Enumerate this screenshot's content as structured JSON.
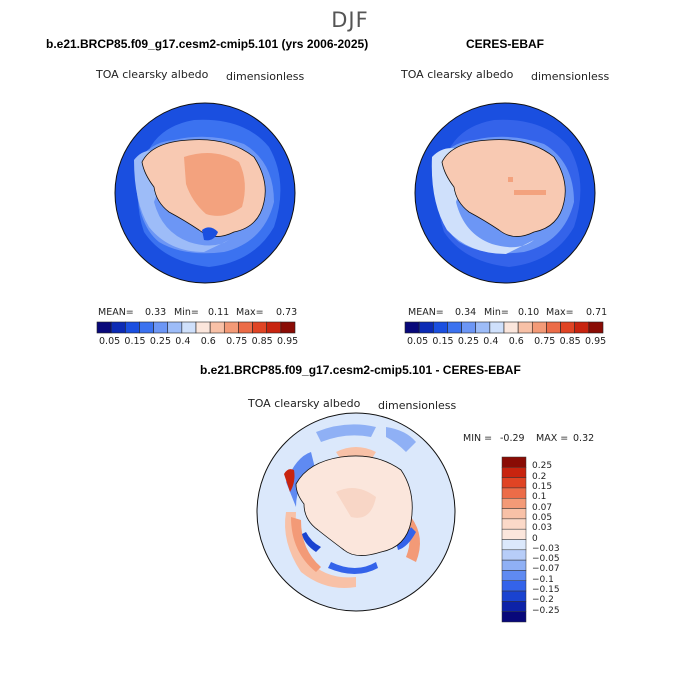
{
  "season": "DJF",
  "panels": [
    {
      "title": "b.e21.BRCP85.f09_g17.cesm2-cmip5.101 (yrs 2006-2025)",
      "variable": "TOA clearsky albedo",
      "units": "dimensionless",
      "stats": {
        "mean_label": "MEAN=",
        "mean": "0.33",
        "min_label": "Min=",
        "min": "0.11",
        "max_label": "Max=",
        "max": "0.73"
      }
    },
    {
      "title": "CERES-EBAF",
      "variable": "TOA clearsky albedo",
      "units": "dimensionless",
      "stats": {
        "mean_label": "MEAN=",
        "mean": "0.34",
        "min_label": "Min=",
        "min": "0.10",
        "max_label": "Max=",
        "max": "0.71"
      }
    }
  ],
  "abs_colorbar": {
    "labels": [
      "0.05",
      "0.15",
      "0.25",
      "0.4",
      "0.6",
      "0.75",
      "0.85",
      "0.95"
    ],
    "colors": [
      "#08087a",
      "#0c2bb5",
      "#1a4fe0",
      "#3b72f0",
      "#6c96f5",
      "#9dbcf8",
      "#cfe0fb",
      "#fbe6dc",
      "#f8c1a7",
      "#f39a77",
      "#ec6c48",
      "#e04424",
      "#c8240f",
      "#8a0c05"
    ]
  },
  "diff_panel": {
    "title": "b.e21.BRCP85.f09_g17.cesm2-cmip5.101 - CERES-EBAF",
    "variable": "TOA clearsky albedo",
    "units": "dimensionless",
    "stats": {
      "min_label": "MIN =",
      "min": "-0.29",
      "max_label": "MAX =",
      "max": "0.32"
    }
  },
  "diff_colorbar": {
    "labels": [
      "0.25",
      "0.2",
      "0.15",
      "0.1",
      "0.07",
      "0.05",
      "0.03",
      "0",
      "−0.03",
      "−0.05",
      "−0.07",
      "−0.1",
      "−0.15",
      "−0.2",
      "−0.25"
    ],
    "colors": [
      "#8a0c05",
      "#c8240f",
      "#e04424",
      "#ec6c48",
      "#f39a77",
      "#f8c1a7",
      "#fbd9c8",
      "#fbe6dc",
      "#dbe8fb",
      "#b7cdf8",
      "#8fb0f5",
      "#5f8af2",
      "#3463ea",
      "#1a43d0",
      "#0d22a8",
      "#08087a"
    ]
  },
  "colors": {
    "ocean_blue": "#1a4fe0",
    "land_peach": "#f8c9b2",
    "land_salmon": "#f3a27e",
    "diff_base": "#dbe8fb"
  }
}
